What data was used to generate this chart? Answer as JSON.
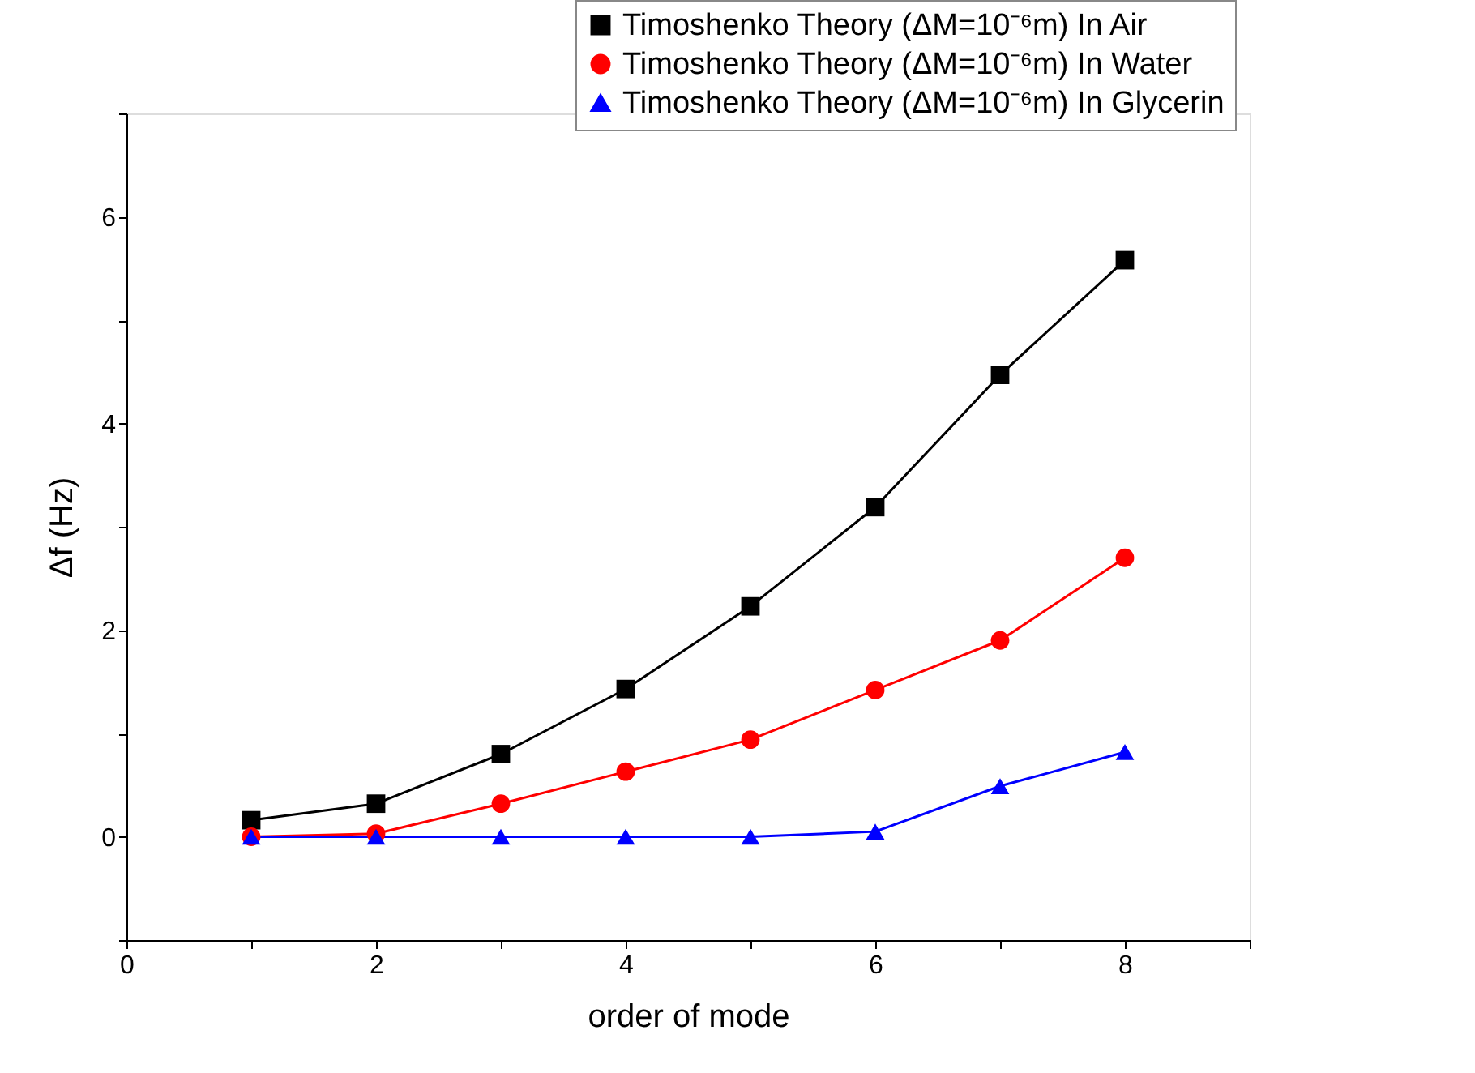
{
  "chart_data": {
    "type": "line",
    "xlabel": "order of mode",
    "ylabel": "Δf (Hz)",
    "x": [
      1,
      2,
      3,
      4,
      5,
      6,
      7,
      8
    ],
    "series": [
      {
        "name": "Timoshenko Theory (ΔM=10⁻⁶m) In Air",
        "color": "#000000",
        "marker": "square",
        "values": [
          0.16,
          0.32,
          0.8,
          1.43,
          2.23,
          3.19,
          4.47,
          5.58
        ]
      },
      {
        "name": "Timoshenko Theory (ΔM=10⁻⁶m) In Water",
        "color": "#ff0000",
        "marker": "circle",
        "values": [
          0.0,
          0.03,
          0.32,
          0.63,
          0.94,
          1.42,
          1.9,
          2.7
        ]
      },
      {
        "name": "Timoshenko Theory (ΔM=10⁻⁶m) In Glycerin",
        "color": "#0000ff",
        "marker": "triangle",
        "values": [
          0.0,
          0.0,
          0.0,
          0.0,
          0.0,
          0.05,
          0.49,
          0.82
        ]
      }
    ],
    "xlim": [
      0,
      9
    ],
    "ylim": [
      -1,
      7
    ],
    "xticks": [
      0,
      {
        "value": 1,
        "label": null
      },
      2,
      {
        "value": 3,
        "label": null
      },
      4,
      {
        "value": 5,
        "label": null
      },
      6,
      {
        "value": 7,
        "label": null
      },
      8,
      {
        "value": 9,
        "label": null
      }
    ],
    "yticks": [
      {
        "value": -1,
        "label": null
      },
      0,
      {
        "value": 1,
        "label": null
      },
      2,
      {
        "value": 3,
        "label": null
      },
      4,
      {
        "value": 5,
        "label": null
      },
      6,
      {
        "value": 7,
        "label": null
      }
    ],
    "grid": false,
    "legend": "top right",
    "line_style": "solid"
  }
}
